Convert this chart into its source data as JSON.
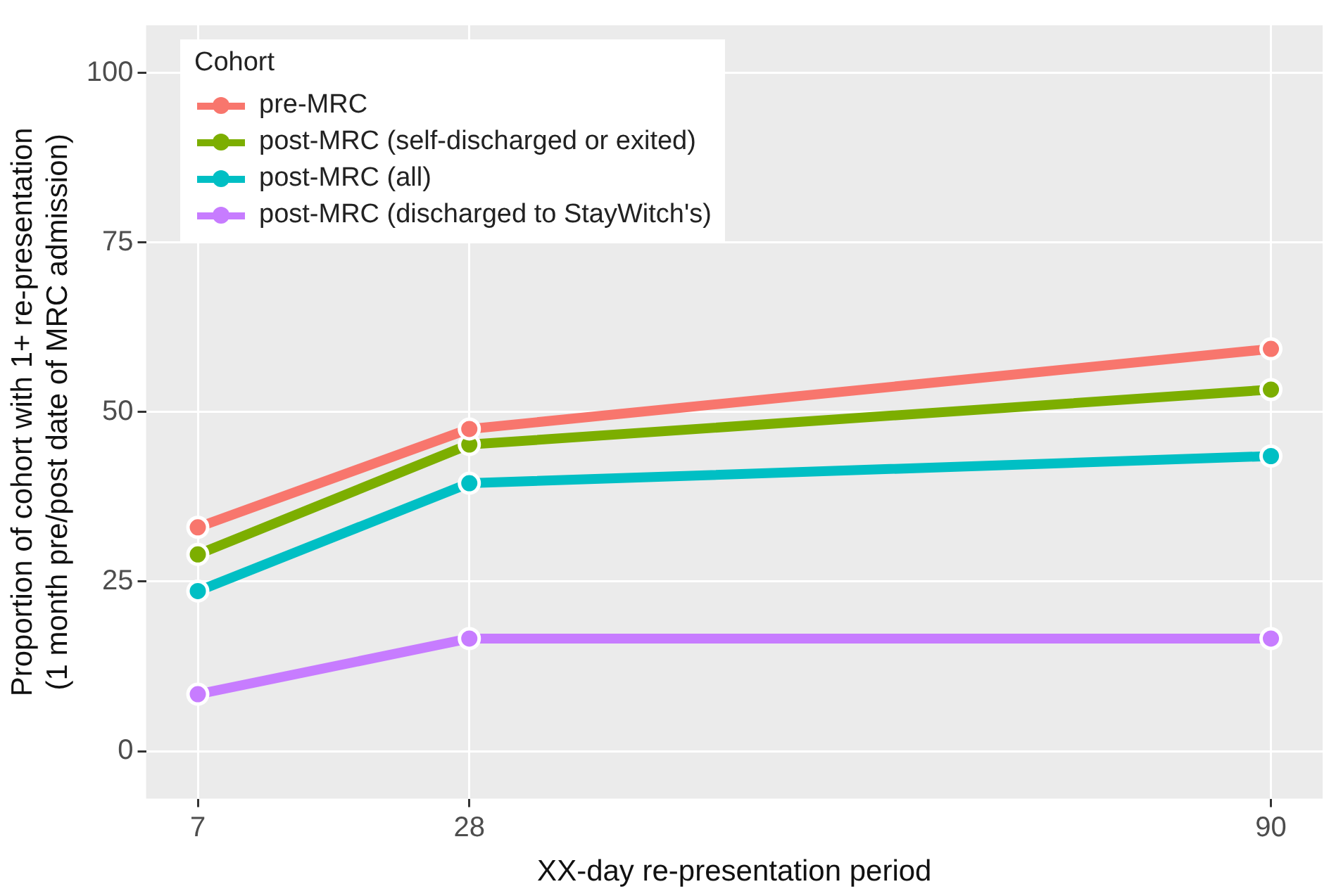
{
  "chart_data": {
    "type": "line",
    "xlabel": "XX-day re-presentation period",
    "ylabel": "Proportion of cohort with 1+ re-presentation\n(1 month pre/post date of MRC admission)",
    "legend_title": "Cohort",
    "x": [
      7,
      28,
      90
    ],
    "series": [
      {
        "name": "pre-MRC",
        "color": "#f8766d",
        "values": [
          33,
          47.5,
          59.3
        ]
      },
      {
        "name": "post-MRC (self-discharged or exited)",
        "color": "#7cae00",
        "values": [
          29,
          45.2,
          53.3
        ]
      },
      {
        "name": "post-MRC (all)",
        "color": "#00bfc4",
        "values": [
          23.6,
          39.5,
          43.5
        ]
      },
      {
        "name": "post-MRC (discharged to StayWitch's)",
        "color": "#c77cff",
        "values": [
          8.4,
          16.6,
          16.6
        ]
      }
    ],
    "xlim": [
      3,
      94
    ],
    "xticks": [
      7,
      28,
      90
    ],
    "ylim": [
      -7,
      107
    ],
    "yticks": [
      0,
      25,
      50,
      75,
      100
    ],
    "grid": true,
    "legend": "top left",
    "marker": "circle",
    "line_style": "solid"
  }
}
